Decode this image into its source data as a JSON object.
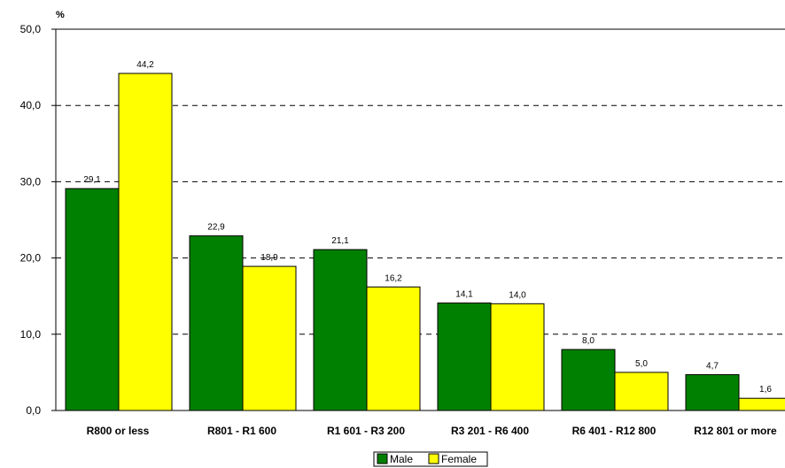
{
  "chart_data": {
    "type": "bar",
    "ylabel": "%",
    "ylim": [
      0,
      50
    ],
    "yticks": [
      "0,0",
      "10,0",
      "20,0",
      "30,0",
      "40,0",
      "50,0"
    ],
    "grid": true,
    "legend_position": "bottom",
    "categories": [
      "R800 or less",
      "R801 - R1 600",
      "R1 601 - R3 200",
      "R3 201 - R6 400",
      "R6 401 - R12 800",
      "R12 801 or more"
    ],
    "series": [
      {
        "name": "Male",
        "color": "#008000",
        "values": [
          29.1,
          22.9,
          21.1,
          14.1,
          8.0,
          4.7
        ],
        "labels": [
          "29,1",
          "22,9",
          "21,1",
          "14,1",
          "8,0",
          "4,7"
        ]
      },
      {
        "name": "Female",
        "color": "#ffff00",
        "values": [
          44.2,
          18.9,
          16.2,
          14.0,
          5.0,
          1.6
        ],
        "labels": [
          "44,2",
          "18,9",
          "16,2",
          "14,0",
          "5,0",
          "1,6"
        ]
      }
    ]
  }
}
